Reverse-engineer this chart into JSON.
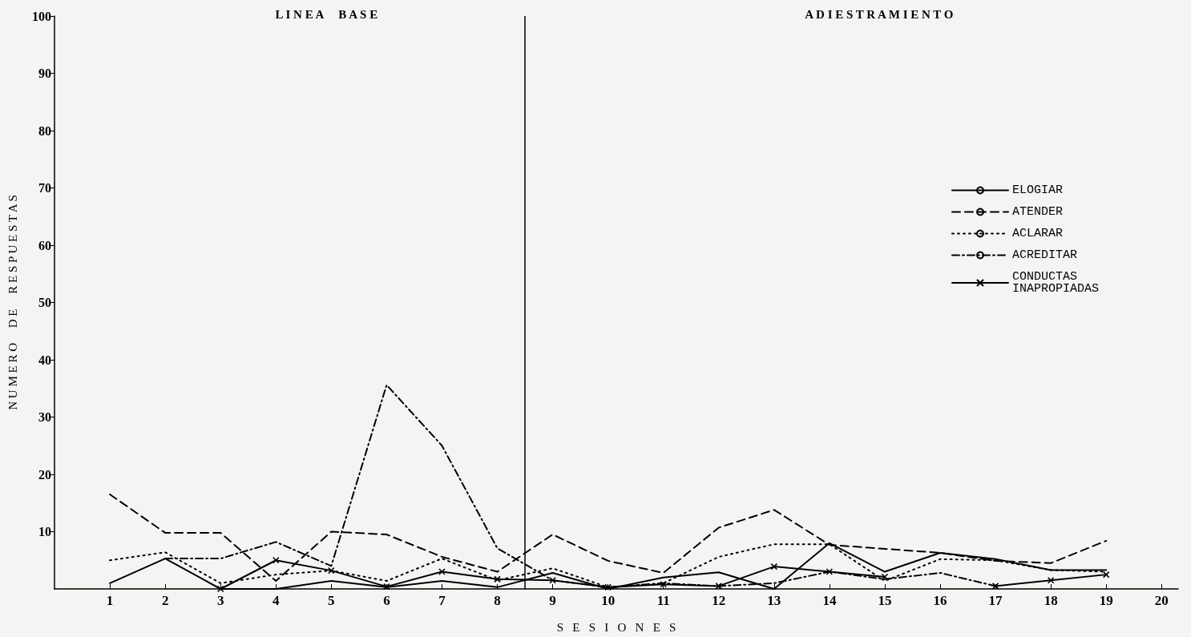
{
  "chart_data": {
    "type": "line",
    "xlabel": "S   E   S   I   O   N   E   S",
    "ylabel": "N U M E R O     D E     R E S P U E S T A S",
    "annotations": [
      "L I N E A     B A S E",
      "A D I E S T R A M I E N T O"
    ],
    "x": [
      1,
      2,
      3,
      4,
      5,
      6,
      7,
      8,
      9,
      10,
      11,
      12,
      13,
      14,
      15,
      16,
      17,
      18,
      19
    ],
    "xlim": [
      0,
      20.3
    ],
    "xticks": [
      1,
      2,
      3,
      4,
      5,
      6,
      7,
      8,
      9,
      10,
      11,
      12,
      13,
      14,
      15,
      16,
      17,
      18,
      19,
      20
    ],
    "ylim": [
      0,
      100
    ],
    "yticks": [
      10,
      20,
      30,
      40,
      50,
      60,
      70,
      80,
      90,
      100
    ],
    "grid": false,
    "legend": "right",
    "marker": "none",
    "ref_lines": [
      {
        "axis": "x",
        "value": 8.5,
        "color": "#000000"
      }
    ],
    "series": [
      {
        "name": "ELOGIAR",
        "color": "#000000",
        "line_style": "solid",
        "values": [
          1,
          5.3,
          0,
          0,
          1.4,
          0.3,
          1.4,
          0.3,
          2.8,
          0,
          2,
          2.9,
          0,
          8,
          3,
          6.3,
          5.2,
          3.3,
          3.3
        ]
      },
      {
        "name": "ATENDER",
        "color": "#000000",
        "line_style": "dashed",
        "values": [
          16.5,
          9.8,
          9.8,
          1.4,
          10,
          9.5,
          5.6,
          3,
          9.5,
          4.9,
          2.8,
          10.7,
          13.8,
          7.7,
          7,
          6.3,
          4.9,
          4.5,
          8.4
        ]
      },
      {
        "name": "ACLARAR",
        "color": "#000000",
        "line_style": "dotted",
        "values": [
          5,
          6.4,
          1,
          2.5,
          3.2,
          1.4,
          5.3,
          1.5,
          3.6,
          0.3,
          1,
          5.6,
          7.8,
          7.8,
          1.4,
          5.2,
          5,
          3.3,
          3
        ]
      },
      {
        "name": "ACREDITAR",
        "color": "#000000",
        "line_style": "dashdot",
        "values": [
          null,
          5.3,
          5.3,
          8.2,
          4,
          35.6,
          25,
          7.1,
          1.5,
          0.3,
          1,
          0.5,
          1,
          3,
          1.7,
          2.8,
          0.5,
          null,
          null
        ]
      },
      {
        "name": "CONDUCTAS INAPROPIADAS",
        "color": "#000000",
        "line_style": "solid",
        "marker": "cross",
        "values": [
          null,
          null,
          0,
          5,
          3.2,
          0.4,
          3,
          1.7,
          1.5,
          0.3,
          0.8,
          0.5,
          3.9,
          3,
          2.1,
          null,
          0.5,
          1.5,
          2.5
        ]
      }
    ]
  }
}
